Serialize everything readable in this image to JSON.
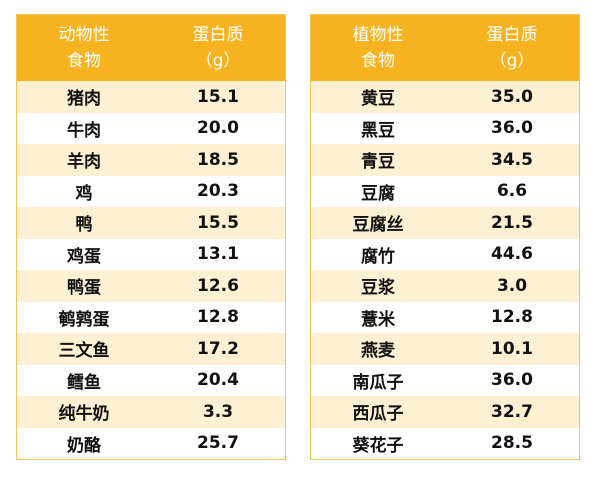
{
  "animal": {
    "header": {
      "food_line1": "动物性",
      "food_line2": "食物",
      "protein_line1": "蛋白质",
      "protein_line2": "（g）"
    },
    "rows": [
      {
        "food": "猪肉",
        "protein": "15.1"
      },
      {
        "food": "牛肉",
        "protein": "20.0"
      },
      {
        "food": "羊肉",
        "protein": "18.5"
      },
      {
        "food": "鸡",
        "protein": "20.3"
      },
      {
        "food": "鸭",
        "protein": "15.5"
      },
      {
        "food": "鸡蛋",
        "protein": "13.1"
      },
      {
        "food": "鸭蛋",
        "protein": "12.6"
      },
      {
        "food": "鹌鹑蛋",
        "protein": "12.8"
      },
      {
        "food": "三文鱼",
        "protein": "17.2"
      },
      {
        "food": "鳕鱼",
        "protein": "20.4"
      },
      {
        "food": "纯牛奶",
        "protein": "3.3"
      },
      {
        "food": "奶酪",
        "protein": "25.7"
      }
    ]
  },
  "plant": {
    "header": {
      "food_line1": "植物性",
      "food_line2": "食物",
      "protein_line1": "蛋白质",
      "protein_line2": "（g）"
    },
    "rows": [
      {
        "food": "黄豆",
        "protein": "35.0"
      },
      {
        "food": "黑豆",
        "protein": "36.0"
      },
      {
        "food": "青豆",
        "protein": "34.5"
      },
      {
        "food": "豆腐",
        "protein": "6.6"
      },
      {
        "food": "豆腐丝",
        "protein": "21.5"
      },
      {
        "food": "腐竹",
        "protein": "44.6"
      },
      {
        "food": "豆浆",
        "protein": "3.0"
      },
      {
        "food": "薏米",
        "protein": "12.8"
      },
      {
        "food": "燕麦",
        "protein": "10.1"
      },
      {
        "food": "南瓜子",
        "protein": "36.0"
      },
      {
        "food": "西瓜子",
        "protein": "32.7"
      },
      {
        "food": "葵花子",
        "protein": "28.5"
      }
    ]
  },
  "colors": {
    "header_bg": "#f7b31f",
    "stripe": "#fdf0d3",
    "border": "#f4c35a"
  }
}
